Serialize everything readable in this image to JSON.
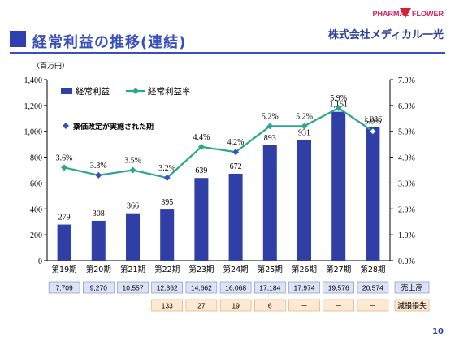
{
  "header": {
    "title": "経常利益の推移(連結)",
    "logo_pharmac": "PHARMAC",
    "logo_flower": "FLOWER",
    "company": "株式会社メディカル一光"
  },
  "page_number": "10",
  "colors": {
    "bar": "#2f3fa6",
    "line": "#2aa88a",
    "title": "#3a4fbf",
    "table_blue": "#dde3f7",
    "table_orange": "#fde9d2"
  },
  "chart_data": {
    "type": "bar",
    "unit_label": "（百万円）",
    "categories": [
      "第19期",
      "第20期",
      "第21期",
      "第22期",
      "第23期",
      "第24期",
      "第25期",
      "第26期",
      "第27期",
      "第28期"
    ],
    "series": [
      {
        "name": "経常利益",
        "type": "bar",
        "values": [
          279,
          308,
          366,
          395,
          639,
          672,
          893,
          931,
          1151,
          1036
        ]
      },
      {
        "name": "経常利益率",
        "type": "line",
        "values": [
          3.6,
          3.3,
          3.5,
          3.2,
          4.4,
          4.2,
          5.2,
          5.2,
          5.9,
          5.0
        ],
        "labels": [
          "3.6%",
          "3.3%",
          "3.5%",
          "3.2%",
          "4.4%",
          "4.2%",
          "5.2%",
          "5.2%",
          "5.9%",
          "5.0%"
        ]
      }
    ],
    "bar_labels": [
      "279",
      "308",
      "366",
      "395",
      "639",
      "672",
      "893",
      "931",
      "1,151",
      "1,036"
    ],
    "revision_periods": [
      1,
      3,
      5,
      9
    ],
    "legend_revision": "薬価改定が実施された期",
    "y_left": {
      "min": 0,
      "max": 1400,
      "ticks": [
        "0",
        "200",
        "400",
        "600",
        "800",
        "1,000",
        "1,200",
        "1,400"
      ]
    },
    "y_right": {
      "min": 0,
      "max": 7,
      "ticks": [
        "0.0%",
        "1.0%",
        "2.0%",
        "3.0%",
        "4.0%",
        "5.0%",
        "6.0%",
        "7.0%"
      ]
    },
    "legend_placement": "top-left"
  },
  "table": {
    "sales_label": "売上高",
    "sales": [
      "7,709",
      "9,270",
      "10,557",
      "12,362",
      "14,662",
      "16,068",
      "17,184",
      "17,974",
      "19,576",
      "20,574"
    ],
    "impairment_label": "減損損失",
    "impairment": [
      "",
      "",
      "",
      "133",
      "27",
      "19",
      "6",
      "－",
      "－",
      "－"
    ]
  }
}
